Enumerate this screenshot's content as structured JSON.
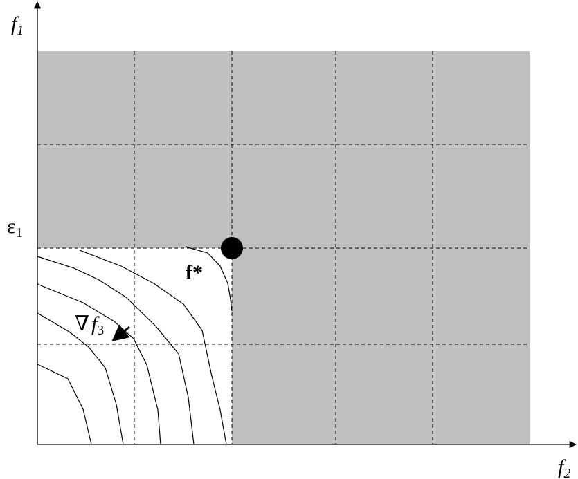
{
  "labels": {
    "y_axis": "f",
    "y_axis_sub": "1",
    "x_axis": "f",
    "x_axis_sub": "2",
    "epsilon": "ε",
    "epsilon_sub": "1",
    "optimum": "f*",
    "gradient_symbol": "∇",
    "gradient_f": "f",
    "gradient_sub": "3"
  },
  "colors": {
    "infeasible_region": "#c0c0c0",
    "feasible_region": "#ffffff",
    "lines": "#000000"
  }
}
